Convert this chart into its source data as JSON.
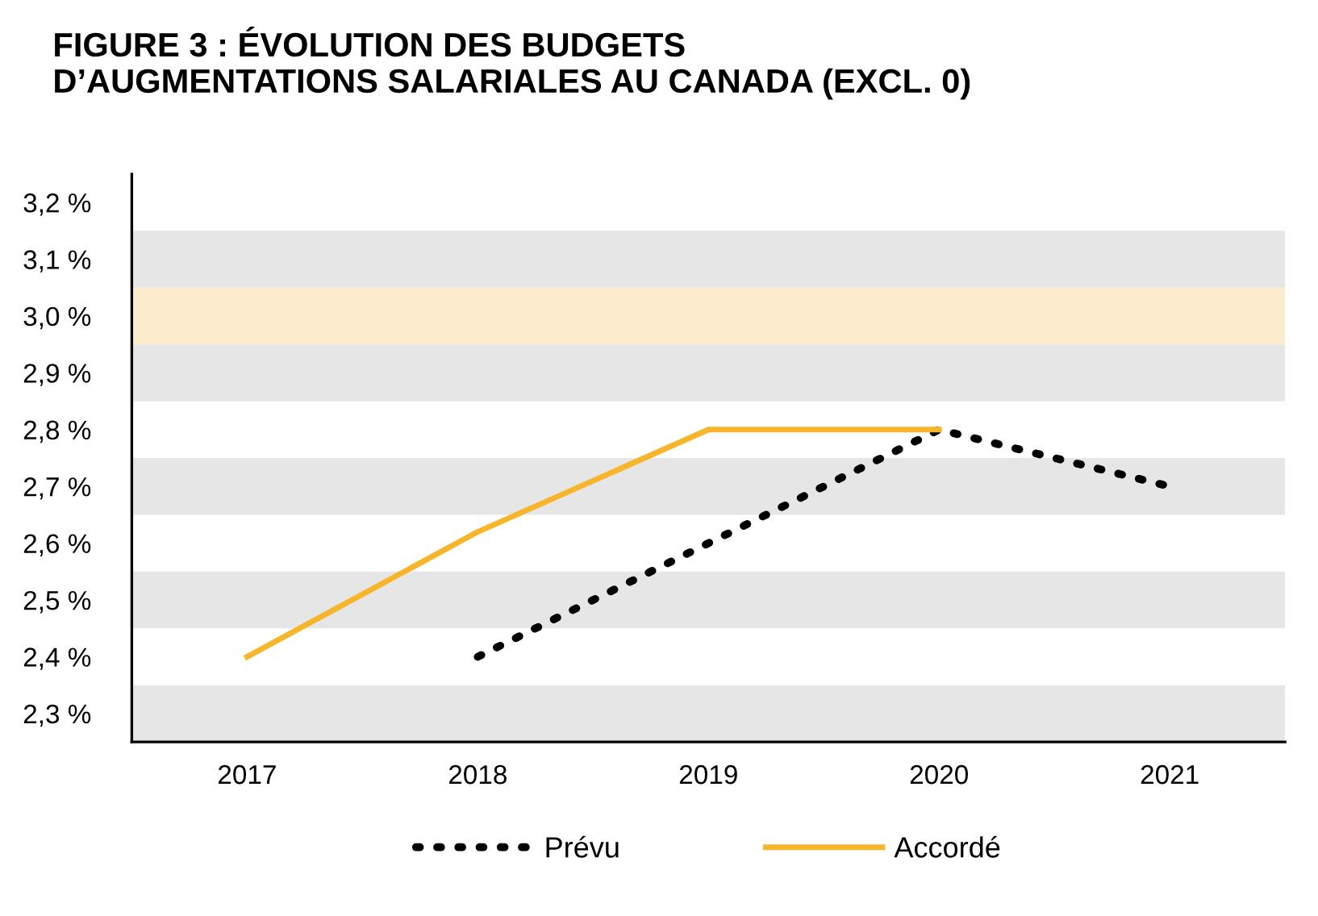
{
  "chart_data": {
    "type": "line",
    "title": "FIGURE 3 : ÉVOLUTION DES BUDGETS\nD’AUGMENTATIONS SALARIALES AU CANADA (EXCL. 0)",
    "categories": [
      "2017",
      "2018",
      "2019",
      "2020",
      "2021"
    ],
    "series": [
      {
        "name": "Prévu",
        "color": "#000000",
        "line_style": "dotted",
        "values": [
          null,
          2.4,
          2.6,
          2.8,
          2.7
        ]
      },
      {
        "name": "Accordé",
        "color": "#f7b52c",
        "line_style": "solid",
        "values": [
          2.4,
          2.62,
          2.8,
          2.8,
          null
        ]
      }
    ],
    "ylim": [
      2.25,
      3.25
    ],
    "yticks": [
      {
        "value": 2.3,
        "label": "2,3 %"
      },
      {
        "value": 2.4,
        "label": "2,4 %"
      },
      {
        "value": 2.5,
        "label": "2,5 %"
      },
      {
        "value": 2.6,
        "label": "2,6 %"
      },
      {
        "value": 2.7,
        "label": "2,7 %"
      },
      {
        "value": 2.8,
        "label": "2,8 %"
      },
      {
        "value": 2.9,
        "label": "2,9 %"
      },
      {
        "value": 3.0,
        "label": "3,0 %"
      },
      {
        "value": 3.1,
        "label": "3,1 %"
      },
      {
        "value": 3.2,
        "label": "3,2 %"
      }
    ],
    "bands": [
      {
        "axis": "y",
        "from": 2.25,
        "to": 2.35,
        "color": "#e6e6e6"
      },
      {
        "axis": "y",
        "from": 2.45,
        "to": 2.55,
        "color": "#e6e6e6"
      },
      {
        "axis": "y",
        "from": 2.65,
        "to": 2.75,
        "color": "#e6e6e6"
      },
      {
        "axis": "y",
        "from": 2.85,
        "to": 2.95,
        "color": "#e6e6e6"
      },
      {
        "axis": "y",
        "from": 2.95,
        "to": 3.05,
        "color": "#fcebcc"
      },
      {
        "axis": "y",
        "from": 3.05,
        "to": 3.15,
        "color": "#e6e6e6"
      }
    ],
    "grid": false,
    "legend": "bottom",
    "marker": "none"
  }
}
